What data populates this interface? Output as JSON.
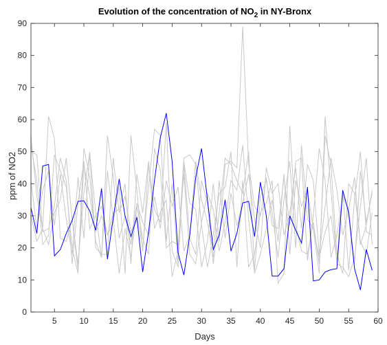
{
  "chart_data": {
    "type": "line",
    "title_prefix": "Evolution of the concentration of NO",
    "title_sub": "2",
    "title_suffix": " in NY-Bronx",
    "xlabel": "Days",
    "ylabel": "ppm of NO2",
    "xlim": [
      1,
      60
    ],
    "ylim": [
      0,
      90
    ],
    "xticks": [
      5,
      10,
      15,
      20,
      25,
      30,
      35,
      40,
      45,
      50,
      55,
      60
    ],
    "yticks": [
      0,
      10,
      20,
      30,
      40,
      50,
      60,
      70,
      80,
      90
    ],
    "grid": false,
    "colors": {
      "highlight": "#0000ff",
      "background": "#c8c8c8",
      "axis": "#262626"
    },
    "highlight_series": {
      "x": [
        1,
        2,
        3,
        4,
        5,
        6,
        7,
        8,
        9,
        10,
        11,
        12,
        13,
        14,
        15,
        16,
        17,
        18,
        19,
        20,
        21,
        22,
        23,
        24,
        25,
        26,
        27,
        28,
        29,
        30,
        31,
        32,
        33,
        34,
        35,
        36,
        37,
        38,
        39,
        40,
        41,
        42,
        43,
        44,
        45,
        46,
        47,
        48,
        49,
        50,
        51,
        52,
        53,
        54,
        55,
        56,
        57,
        58,
        59
      ],
      "values": [
        32.5,
        24.5,
        45.5,
        46,
        17.5,
        19.5,
        24.5,
        28.5,
        34.5,
        34.7,
        31.5,
        25.5,
        38.5,
        16.5,
        29.5,
        41.5,
        30,
        23.5,
        29.5,
        12.5,
        25,
        41,
        54.5,
        62,
        47,
        18.5,
        11.5,
        24,
        42,
        51,
        35,
        19.5,
        24,
        35,
        19,
        24.5,
        34,
        34.5,
        23.5,
        40.5,
        30,
        11.2,
        11.2,
        13.5,
        30,
        25.5,
        21.5,
        39,
        9.7,
        10,
        12.5,
        13.2,
        13.5,
        38,
        31,
        13.5,
        6.9,
        19.5,
        13
      ]
    },
    "background_series": [
      {
        "values": [
          55,
          36,
          26,
          61,
          54,
          23,
          22,
          29,
          15,
          37,
          50,
          20,
          18,
          18,
          48,
          31,
          36,
          25,
          30,
          20,
          39,
          57,
          55,
          22,
          40,
          15,
          46,
          23,
          18,
          41,
          34,
          15,
          31,
          48,
          46,
          41,
          37,
          50,
          13,
          36,
          41,
          31,
          17,
          35,
          47,
          20,
          52,
          29,
          26,
          17,
          25,
          30,
          16,
          38,
          13,
          35,
          50,
          25,
          24
        ]
      },
      {
        "values": [
          50,
          49,
          25,
          26,
          33,
          48,
          41,
          15,
          34,
          47,
          26,
          30,
          33,
          24,
          28,
          39,
          12,
          55,
          38,
          19,
          46,
          32,
          28,
          59,
          19,
          14,
          47,
          34,
          32,
          14,
          22,
          40,
          22,
          46,
          47,
          45,
          89,
          46,
          33,
          30,
          42,
          27,
          26,
          42,
          27,
          47,
          48,
          16,
          30,
          51,
          41,
          17,
          24,
          36,
          32,
          15,
          44,
          28,
          37
        ]
      },
      {
        "values": [
          52,
          41,
          21,
          24,
          49,
          44,
          39,
          20,
          12,
          46,
          36,
          25,
          30,
          24,
          31,
          32,
          40,
          15,
          43,
          31,
          47,
          26,
          31,
          35,
          11,
          19,
          48,
          49,
          46,
          27,
          14,
          24,
          37,
          39,
          50,
          14,
          41,
          14,
          18,
          31,
          34,
          41,
          9,
          12,
          58,
          27,
          19,
          18,
          28,
          15,
          55,
          46,
          18,
          12,
          40,
          37,
          22,
          18,
          31
        ]
      },
      {
        "values": [
          30,
          22,
          26,
          21,
          31,
          35,
          48,
          29,
          13,
          51,
          42,
          22,
          17,
          44,
          29,
          12,
          26,
          17,
          33,
          23,
          18,
          51,
          44,
          20,
          22,
          21,
          43,
          18,
          15,
          28,
          37,
          32,
          19,
          28,
          41,
          38,
          52,
          29,
          12,
          18,
          26,
          35,
          22,
          43,
          18,
          41,
          33,
          38,
          26,
          12,
          61,
          38,
          15,
          14,
          11,
          17,
          33,
          48,
          21
        ]
      },
      {
        "values": [
          41,
          26,
          38,
          44,
          27,
          43,
          29,
          18,
          42,
          23,
          49,
          31,
          17,
          55,
          42,
          23,
          30,
          21,
          34,
          28,
          24,
          36,
          26,
          41,
          33,
          39,
          19,
          24,
          47,
          35,
          28,
          17,
          41,
          23,
          37,
          27,
          34,
          43,
          29,
          20,
          45,
          37,
          40,
          24,
          31,
          45,
          26,
          46,
          41,
          18,
          33,
          48,
          38,
          24,
          32,
          42,
          21,
          27,
          38
        ]
      }
    ]
  }
}
